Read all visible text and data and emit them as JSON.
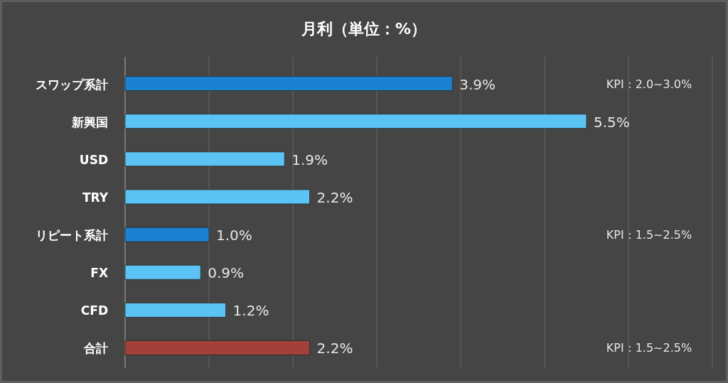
{
  "chart_data": {
    "type": "bar",
    "orientation": "horizontal",
    "title": "月利（単位：%）",
    "categories": [
      "スワップ系計",
      "新興国",
      "USD",
      "TRY",
      "リピート系計",
      "FX",
      "CFD",
      "合計"
    ],
    "values": [
      3.9,
      5.5,
      1.9,
      2.2,
      1.0,
      0.9,
      1.2,
      2.2
    ],
    "colors": [
      "#1b82d2",
      "#5cc3f5",
      "#5cc3f5",
      "#5cc3f5",
      "#1b82d2",
      "#5cc3f5",
      "#5cc3f5",
      "#a3403a"
    ],
    "value_labels": [
      "3.9%",
      "5.5%",
      "1.9%",
      "2.2%",
      "1.0%",
      "0.9%",
      "1.2%",
      "2.2%"
    ],
    "xlim": [
      0,
      7
    ],
    "xticks": [
      {
        "value": 1,
        "label": null
      },
      {
        "value": 2,
        "label": null
      },
      {
        "value": 3,
        "label": null
      },
      {
        "value": 4,
        "label": null
      },
      {
        "value": 5,
        "label": null
      },
      {
        "value": 6,
        "label": null
      },
      {
        "value": 7,
        "label": null
      }
    ],
    "grid": "x",
    "tick_labels": "y",
    "annotations": [
      "KPI：2.0~3.0%",
      "KPI：1.5~2.5%",
      "KPI：1.5~2.5%"
    ]
  }
}
